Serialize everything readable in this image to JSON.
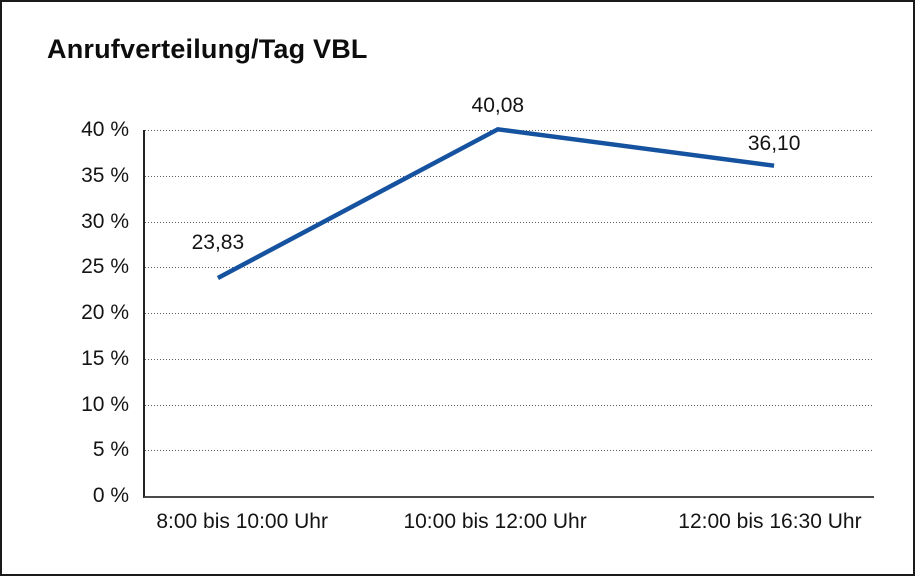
{
  "chart": {
    "title": "Anrufverteilung/Tag VBL",
    "line_color": "#15529F"
  },
  "chart_data": {
    "type": "line",
    "title": "Anrufverteilung/Tag VBL",
    "categories": [
      "8:00 bis 10:00 Uhr",
      "10:00 bis 12:00 Uhr",
      "12:00 bis 16:30 Uhr"
    ],
    "series": [
      {
        "name": "Anrufverteilung",
        "values": [
          23.83,
          40.08,
          36.1
        ],
        "point_labels": [
          "23,83",
          "40,08",
          "36,10"
        ],
        "color": "#15529F"
      }
    ],
    "xlabel": "",
    "ylabel": "",
    "ylim": [
      0,
      40
    ],
    "y_tick_step": 5,
    "y_tick_labels": [
      "0 %",
      "5 %",
      "10 %",
      "15 %",
      "20 %",
      "25 %",
      "30 %",
      "35 %",
      "40 %"
    ],
    "y_tick_suffix": " %",
    "grid": "horizontal-dotted",
    "legend": "none",
    "decimal_separator": ","
  }
}
